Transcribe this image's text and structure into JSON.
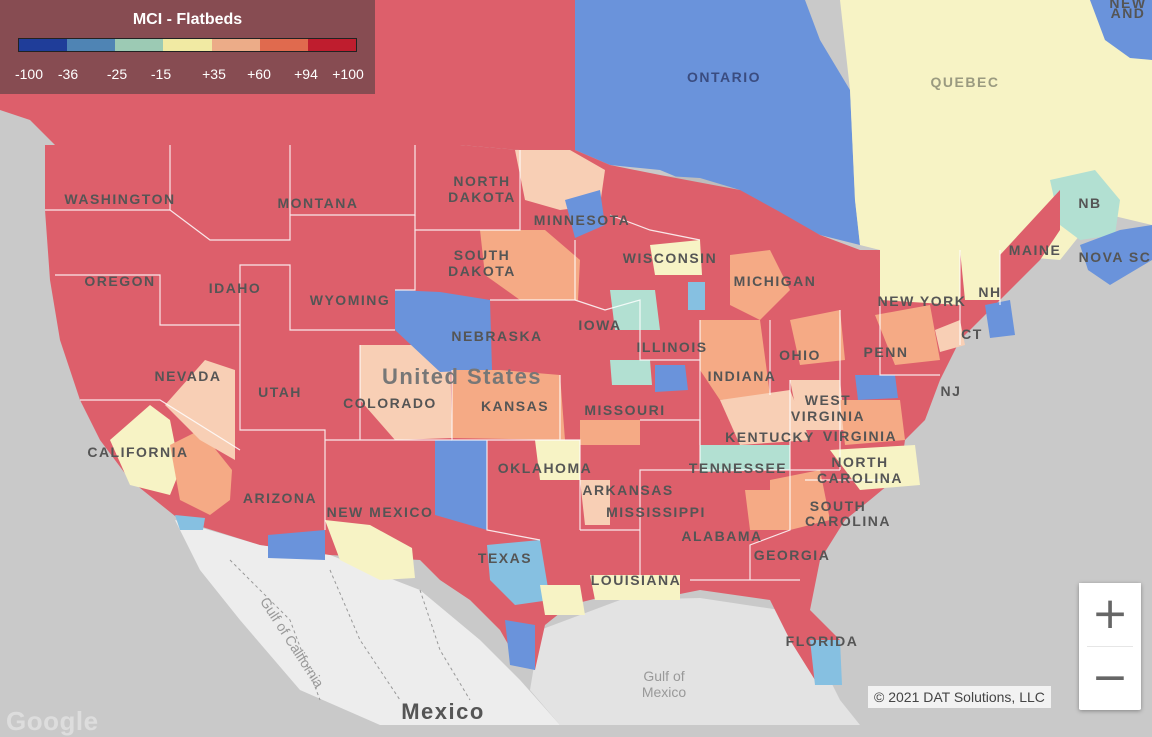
{
  "legend": {
    "title": "MCI - Flatbeds",
    "colors": [
      "#1f3d99",
      "#4f84b4",
      "#9ccab4",
      "#f1eaa3",
      "#ecac88",
      "#e06a4e",
      "#bf1d2e"
    ],
    "ticks": [
      "-100",
      "-36",
      "-25",
      "-15",
      "+35",
      "+60",
      "+94",
      "+100"
    ]
  },
  "map_colors": {
    "red": "#dd5f6b",
    "blue": "#6a93db",
    "light_blue": "#86c0e1",
    "pale_yellow": "#f7f3c5",
    "light_orange": "#f5aa85",
    "peach": "#f8cfb5",
    "mint": "#b2e0d2",
    "land": "#c9c9c9",
    "mexico": "#ededed",
    "water": "#ededed"
  },
  "labels": {
    "ontario": "ONTARIO",
    "quebec": "QUEBEC",
    "new_england_top": "NEW",
    "new_england_bottom": "AND",
    "washington": "WASHINGTON",
    "montana": "MONTANA",
    "north_dakota_1": "NORTH",
    "north_dakota_2": "DAKOTA",
    "minnesota": "MINNESOTA",
    "oregon": "OREGON",
    "idaho": "IDAHO",
    "south_dakota_1": "SOUTH",
    "south_dakota_2": "DAKOTA",
    "wisconsin": "WISCONSIN",
    "michigan": "MICHIGAN",
    "wyoming": "WYOMING",
    "nebraska": "NEBRASKA",
    "iowa": "IOWA",
    "illinois": "ILLINOIS",
    "indiana": "INDIANA",
    "ohio": "OHIO",
    "penn": "PENN",
    "new_york": "NEW YORK",
    "maine": "MAINE",
    "nh": "NH",
    "ct": "CT",
    "nj": "NJ",
    "nb": "NB",
    "nova_scotia": "NOVA SC",
    "nevada": "NEVADA",
    "utah": "UTAH",
    "colorado": "COLORADO",
    "kansas": "KANSAS",
    "missouri": "MISSOURI",
    "kentucky": "KENTUCKY",
    "west_virginia": "WEST",
    "virginia": "VIRGINIA",
    "virginia_small": "VIRGINIA",
    "united_states": "United States",
    "california": "CALIFORNIA",
    "arizona": "ARIZONA",
    "new_mexico": "NEW MEXICO",
    "oklahoma": "OKLAHOMA",
    "arkansas": "ARKANSAS",
    "tennessee": "TENNESSEE",
    "north_carolina_1": "NORTH",
    "north_carolina_2": "CAROLINA",
    "south_carolina_1": "SOUTH",
    "south_carolina_2": "CAROLINA",
    "mississippi": "MISSISSIPPI",
    "alabama": "ALABAMA",
    "georgia": "GEORGIA",
    "texas": "TEXAS",
    "louisiana": "LOUISIANA",
    "florida": "FLORIDA",
    "gulf_california": "Gulf of California",
    "gulf_mexico_1": "Gulf of",
    "gulf_mexico_2": "Mexico",
    "mexico": "Mexico"
  },
  "zoom": {
    "in_label": "+",
    "out_label": "−"
  },
  "credit": "© 2021 DAT Solutions, LLC",
  "google": "Google"
}
